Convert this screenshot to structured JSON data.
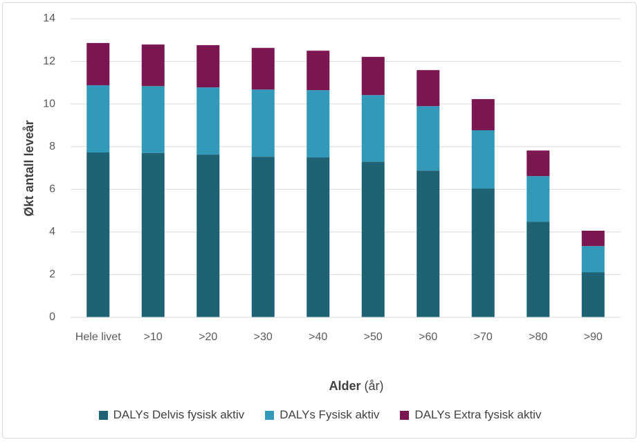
{
  "chart_data": {
    "type": "stacked_bar",
    "y_label": "Økt antall leveår",
    "x_label": "Alder",
    "x_label_unit": "(år)",
    "categories": [
      "Hele livet",
      ">10",
      ">20",
      ">30",
      ">40",
      ">50",
      ">60",
      ">70",
      ">80",
      ">90"
    ],
    "series": [
      {
        "name": "DALYs Delvis fysisk aktiv",
        "color": "#1f6273",
        "values": [
          7.73,
          7.7,
          7.63,
          7.53,
          7.5,
          7.3,
          6.88,
          6.04,
          4.48,
          2.11
        ]
      },
      {
        "name": "DALYs Fysisk aktiv",
        "color": "#3399b8",
        "values": [
          3.15,
          3.14,
          3.15,
          3.15,
          3.15,
          3.12,
          3.02,
          2.73,
          2.14,
          1.23
        ]
      },
      {
        "name": "DALYs Extra fysisk aktiv",
        "color": "#7a1650",
        "values": [
          1.98,
          1.95,
          1.98,
          1.95,
          1.85,
          1.79,
          1.69,
          1.46,
          1.2,
          0.72
        ]
      }
    ],
    "ylim": [
      0,
      14
    ],
    "yticks": [
      0,
      2,
      4,
      6,
      8,
      10,
      12,
      14
    ],
    "grid": true
  }
}
